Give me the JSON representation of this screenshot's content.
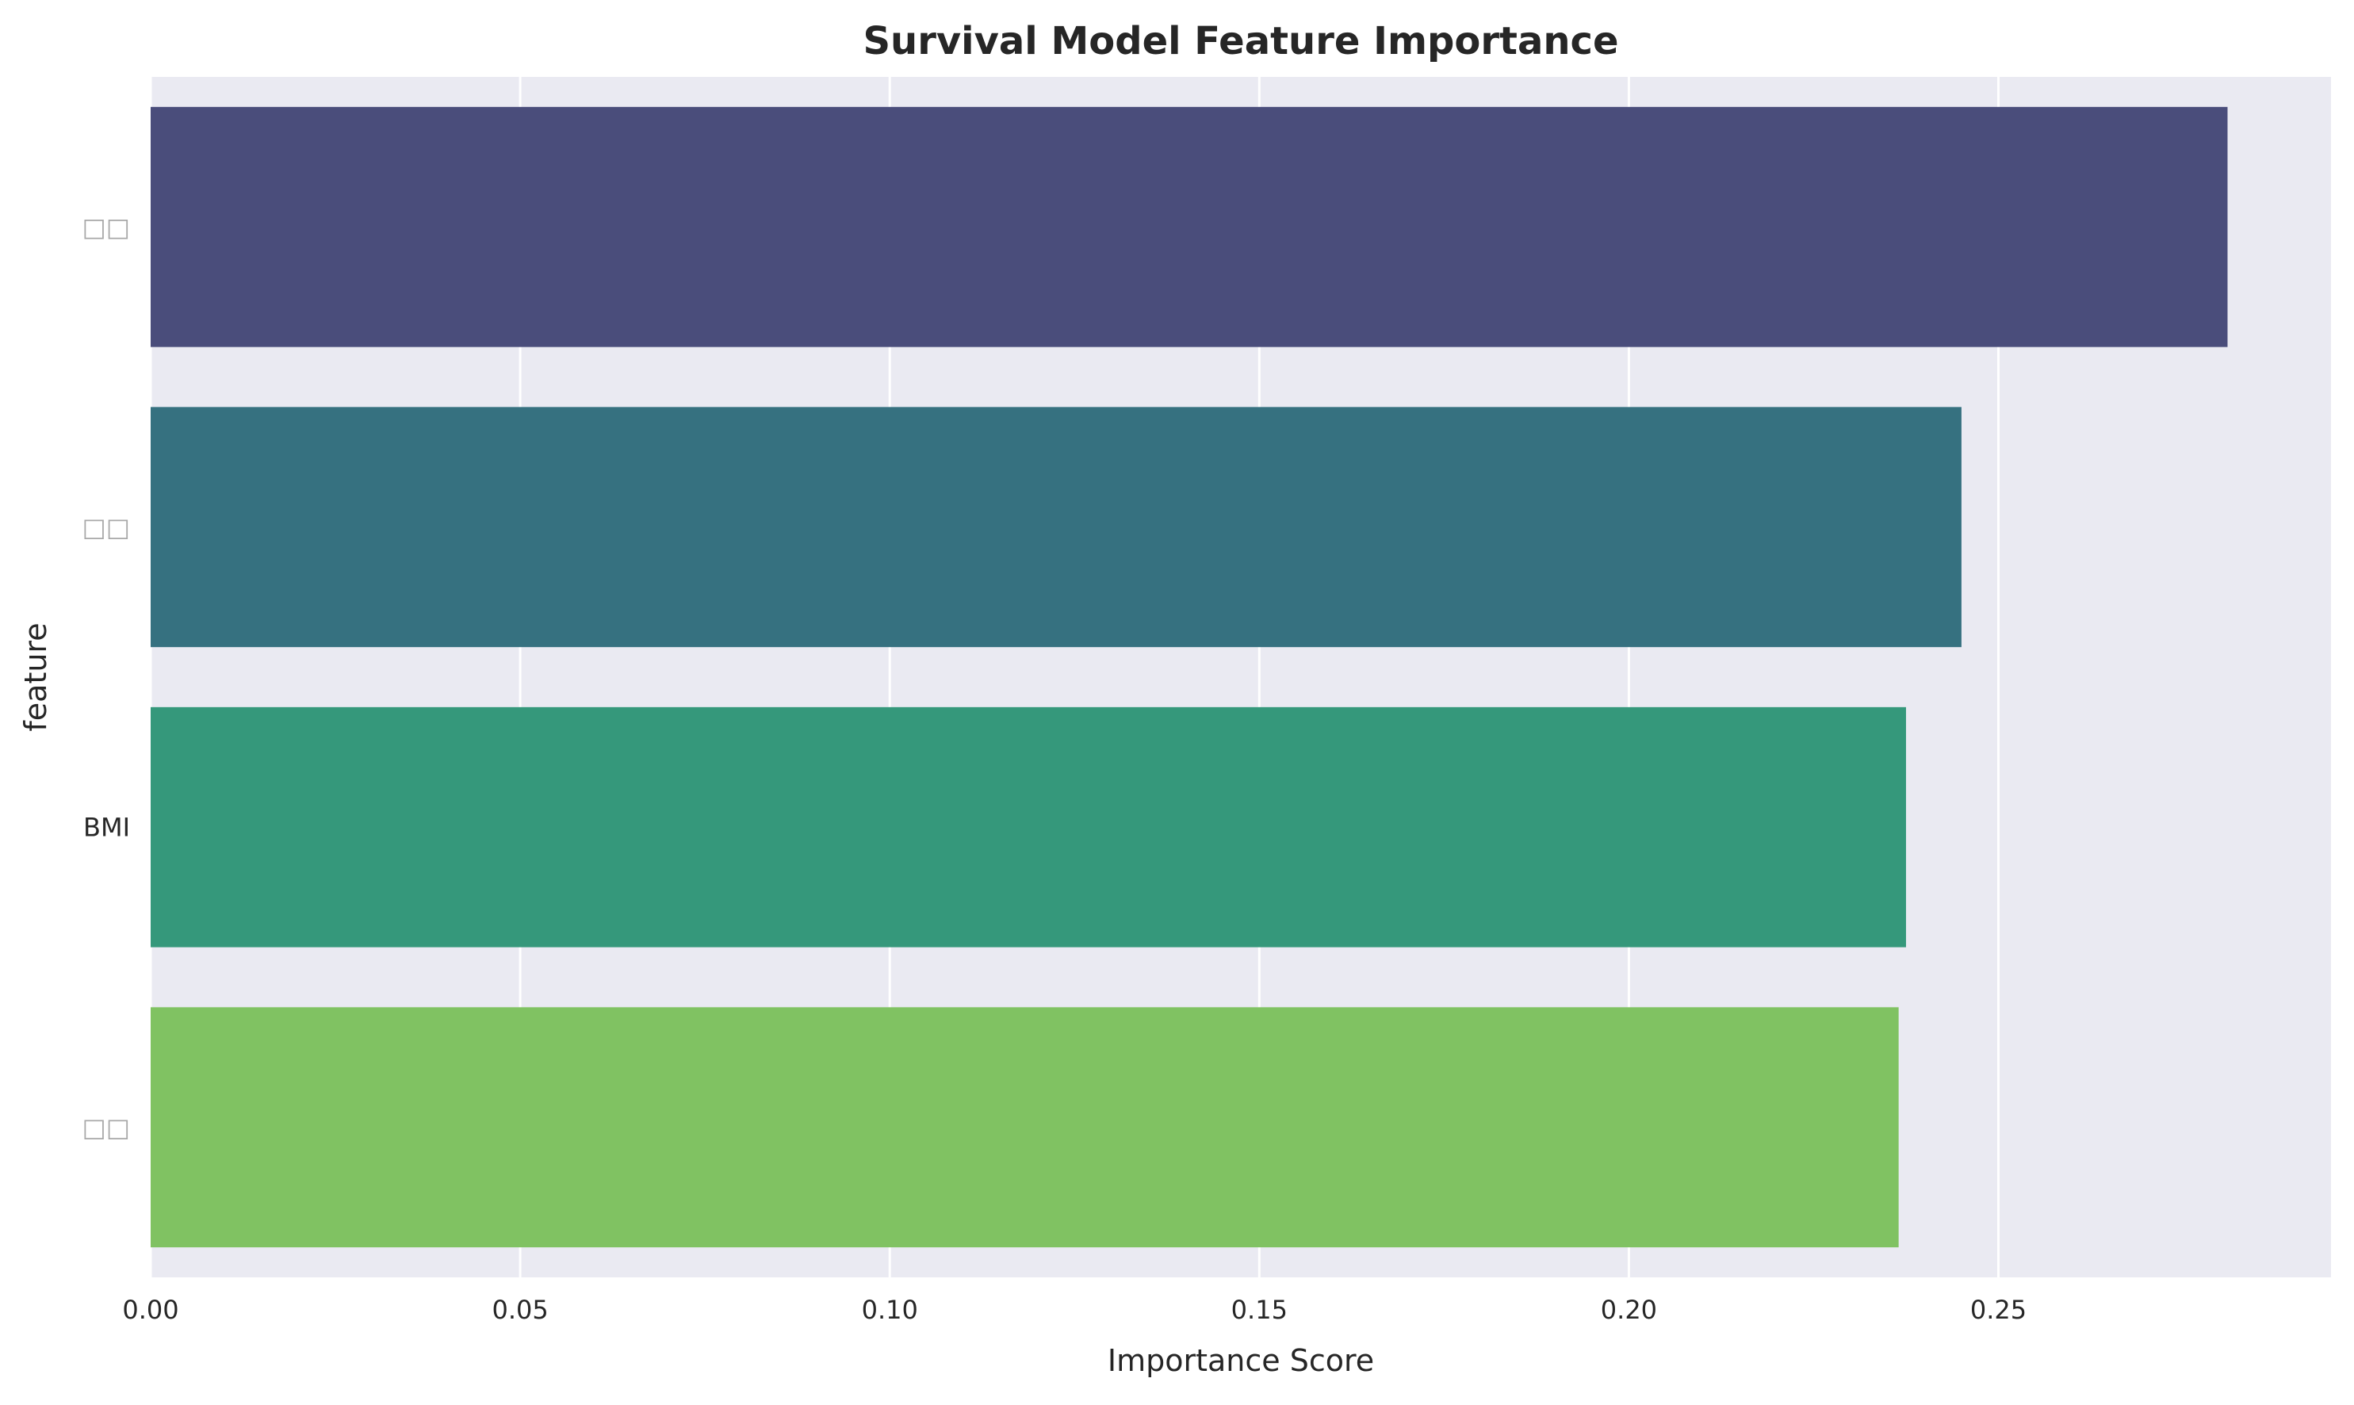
{
  "chart_data": {
    "type": "bar",
    "orientation": "horizontal",
    "title": "Survival Model Feature Importance",
    "xlabel": "Importance Score",
    "ylabel": "feature",
    "xlim": [
      0,
      0.295
    ],
    "xticks": [
      "0.00",
      "0.05",
      "0.10",
      "0.15",
      "0.20",
      "0.25"
    ],
    "xtick_values": [
      0.0,
      0.05,
      0.1,
      0.15,
      0.2,
      0.25
    ],
    "categories": [
      "□□",
      "□□",
      "BMI",
      "□□"
    ],
    "values": [
      0.281,
      0.245,
      0.2375,
      0.2365
    ],
    "colors": [
      "#4a4d7b",
      "#367180",
      "#35987b",
      "#80c262"
    ],
    "background": "#eaeaf2",
    "grid": true,
    "grid_axis": "x",
    "legend": "none"
  }
}
